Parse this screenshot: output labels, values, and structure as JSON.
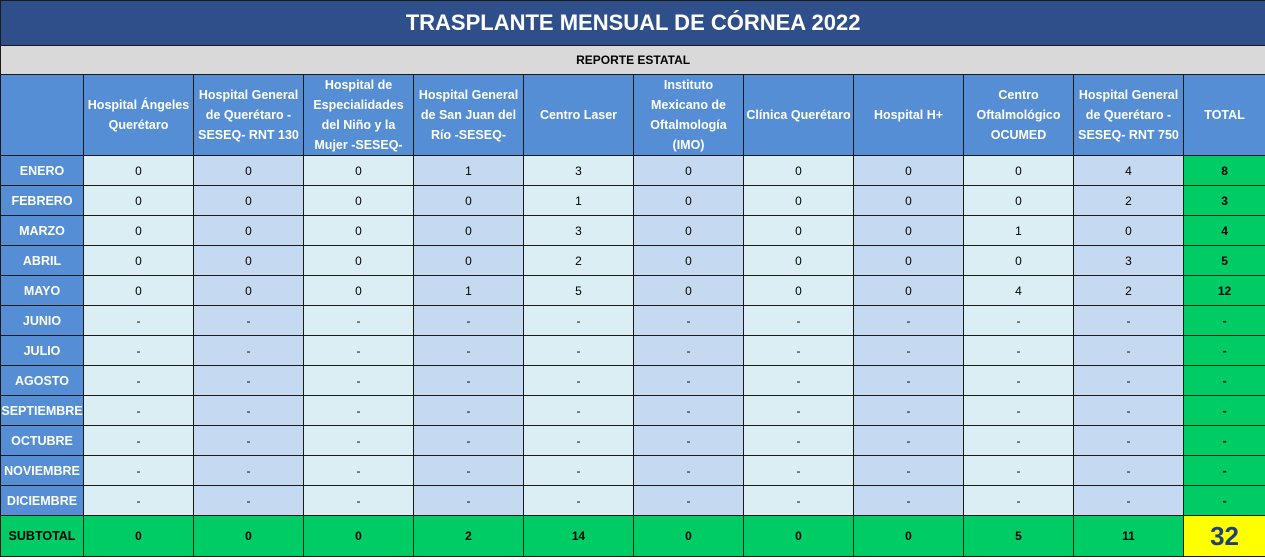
{
  "title": "TRASPLANTE MENSUAL DE CÓRNEA 2022",
  "subtitle": "REPORTE ESTATAL",
  "columns": [
    "Hospital Ángeles Querétaro",
    "Hospital General de Querétaro - SESEQ- RNT 130",
    "Hospital de Especialidades del Niño y la Mujer -SESEQ-",
    "Hospital General de San Juan del Río -SESEQ-",
    "Centro Laser",
    "Instituto Mexicano de Oftalmología (IMO)",
    "Clínica Querétaro",
    "Hospital H+",
    "Centro Oftalmológico OCUMED",
    "Hospital General de Querétaro - SESEQ- RNT 750"
  ],
  "total_label": "TOTAL",
  "rows": [
    {
      "month": "ENERO",
      "values": [
        "0",
        "0",
        "0",
        "1",
        "3",
        "0",
        "0",
        "0",
        "0",
        "4"
      ],
      "total": "8"
    },
    {
      "month": "FEBRERO",
      "values": [
        "0",
        "0",
        "0",
        "0",
        "1",
        "0",
        "0",
        "0",
        "0",
        "2"
      ],
      "total": "3"
    },
    {
      "month": "MARZO",
      "values": [
        "0",
        "0",
        "0",
        "0",
        "3",
        "0",
        "0",
        "0",
        "1",
        "0"
      ],
      "total": "4"
    },
    {
      "month": "ABRIL",
      "values": [
        "0",
        "0",
        "0",
        "0",
        "2",
        "0",
        "0",
        "0",
        "0",
        "3"
      ],
      "total": "5"
    },
    {
      "month": "MAYO",
      "values": [
        "0",
        "0",
        "0",
        "1",
        "5",
        "0",
        "0",
        "0",
        "4",
        "2"
      ],
      "total": "12"
    },
    {
      "month": "JUNIO",
      "values": [
        "-",
        "-",
        "-",
        "-",
        "-",
        "-",
        "-",
        "-",
        "-",
        "-"
      ],
      "total": "-"
    },
    {
      "month": "JULIO",
      "values": [
        "-",
        "-",
        "-",
        "-",
        "-",
        "-",
        "-",
        "-",
        "-",
        "-"
      ],
      "total": "-"
    },
    {
      "month": "AGOSTO",
      "values": [
        "-",
        "-",
        "-",
        "-",
        "-",
        "-",
        "-",
        "-",
        "-",
        "-"
      ],
      "total": "-"
    },
    {
      "month": "SEPTIEMBRE",
      "values": [
        "-",
        "-",
        "-",
        "-",
        "-",
        "-",
        "-",
        "-",
        "-",
        "-"
      ],
      "total": "-"
    },
    {
      "month": "OCTUBRE",
      "values": [
        "-",
        "-",
        "-",
        "-",
        "-",
        "-",
        "-",
        "-",
        "-",
        "-"
      ],
      "total": "-"
    },
    {
      "month": "NOVIEMBRE",
      "values": [
        "-",
        "-",
        "-",
        "-",
        "-",
        "-",
        "-",
        "-",
        "-",
        "-"
      ],
      "total": "-"
    },
    {
      "month": "DICIEMBRE",
      "values": [
        "-",
        "-",
        "-",
        "-",
        "-",
        "-",
        "-",
        "-",
        "-",
        "-"
      ],
      "total": "-"
    }
  ],
  "subtotal": {
    "label": "SUBTOTAL",
    "values": [
      "0",
      "0",
      "0",
      "2",
      "14",
      "0",
      "0",
      "0",
      "5",
      "11"
    ],
    "grand_total": "32"
  },
  "colors": {
    "title_bg": "#2f4f8a",
    "header_bg": "#558ed5",
    "cell_light": "#dbeef3",
    "cell_dark": "#c5d9f1",
    "total_green": "#00cc66",
    "grand_total_yellow": "#ffff00"
  }
}
